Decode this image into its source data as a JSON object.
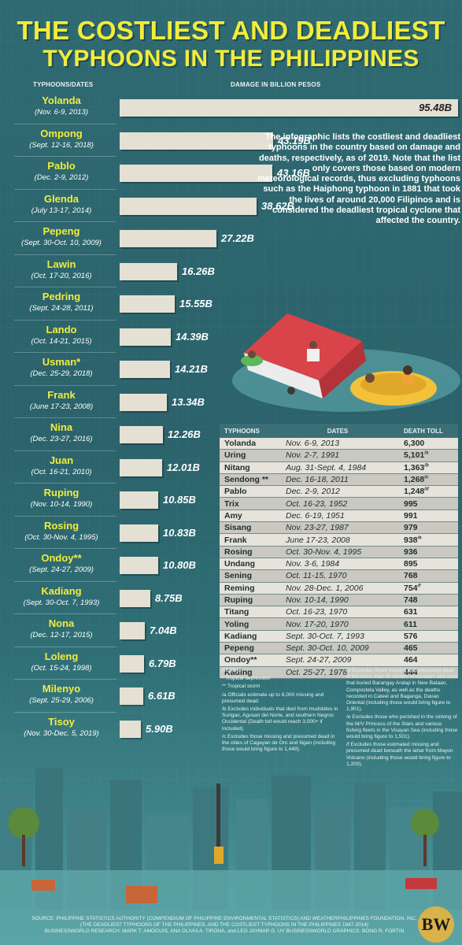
{
  "title": {
    "line1": "THE COSTLIEST AND DEADLIEST",
    "line2": "TYPHOONS IN THE PHILIPPINES"
  },
  "headers": {
    "typhoons_dates": "TYPHOONS/DATES",
    "damage": "DAMAGE IN BILLION PESOS"
  },
  "description": "The infographic lists the costliest and deadliest typhoons in the country based on damage and deaths, respectively, as of 2019. Note that the list only covers those based on modern meteorological records, thus excluding typhoons such as the Haiphong typhoon in 1881 that took the lives of around 20,000 Filipinos and is considered the deadliest tropical cyclone that affected the country.",
  "chart_data": {
    "type": "bar",
    "orientation": "horizontal",
    "unit": "B",
    "xmax": 95.48,
    "items": [
      {
        "name": "Yolanda",
        "dates": "(Nov. 6-9, 2013)",
        "value": 95.48,
        "label": "95.48B"
      },
      {
        "name": "Ompong",
        "dates": "(Sept. 12-16, 2018)",
        "value": 43.19,
        "label": "43.19B"
      },
      {
        "name": "Pablo",
        "dates": "(Dec. 2-9, 2012)",
        "value": 43.16,
        "label": "43.16B"
      },
      {
        "name": "Glenda",
        "dates": "(July 13-17, 2014)",
        "value": 38.62,
        "label": "38.62B"
      },
      {
        "name": "Pepeng",
        "dates": "(Sept. 30-Oct. 10, 2009)",
        "value": 27.22,
        "label": "27.22B"
      },
      {
        "name": "Lawin",
        "dates": "(Oct. 17-20, 2016)",
        "value": 16.26,
        "label": "16.26B"
      },
      {
        "name": "Pedring",
        "dates": "(Sept. 24-28, 2011)",
        "value": 15.55,
        "label": "15.55B"
      },
      {
        "name": "Lando",
        "dates": "(Oct. 14-21, 2015)",
        "value": 14.39,
        "label": "14.39B"
      },
      {
        "name": "Usman*",
        "dates": "(Dec. 25-29, 2018)",
        "value": 14.21,
        "label": "14.21B"
      },
      {
        "name": "Frank",
        "dates": "(June 17-23, 2008)",
        "value": 13.34,
        "label": "13.34B"
      },
      {
        "name": "Nina",
        "dates": "(Dec. 23-27, 2016)",
        "value": 12.26,
        "label": "12.26B"
      },
      {
        "name": "Juan",
        "dates": "(Oct. 16-21, 2010)",
        "value": 12.01,
        "label": "12.01B"
      },
      {
        "name": "Ruping",
        "dates": "(Nov. 10-14, 1990)",
        "value": 10.85,
        "label": "10.85B"
      },
      {
        "name": "Rosing",
        "dates": "(Oct. 30-Nov. 4, 1995)",
        "value": 10.83,
        "label": "10.83B"
      },
      {
        "name": "Ondoy**",
        "dates": "(Sept. 24-27, 2009)",
        "value": 10.8,
        "label": "10.80B"
      },
      {
        "name": "Kadiang",
        "dates": "(Sept. 30-Oct. 7, 1993)",
        "value": 8.75,
        "label": "8.75B"
      },
      {
        "name": "Nona",
        "dates": "(Dec. 12-17, 2015)",
        "value": 7.04,
        "label": "7.04B"
      },
      {
        "name": "Loleng",
        "dates": "(Oct. 15-24, 1998)",
        "value": 6.79,
        "label": "6.79B"
      },
      {
        "name": "Milenyo",
        "dates": "(Sept. 25-29, 2006)",
        "value": 6.61,
        "label": "6.61B"
      },
      {
        "name": "Tisoy",
        "dates": "(Nov. 30-Dec. 5, 2019)",
        "value": 5.9,
        "label": "5.90B"
      }
    ]
  },
  "death_table": {
    "headers": [
      "TYPHOONS",
      "DATES",
      "DEATH TOLL"
    ],
    "rows": [
      {
        "name": "Yolanda",
        "dates": "Nov. 6-9, 2013",
        "toll": "6,300",
        "note": ""
      },
      {
        "name": "Uring",
        "dates": "Nov. 2-7, 1991",
        "toll": "5,101",
        "note": "/a"
      },
      {
        "name": "Nitang",
        "dates": "Aug. 31-Sept. 4, 1984",
        "toll": "1,363",
        "note": "/b"
      },
      {
        "name": "Sendong **",
        "dates": "Dec. 16-18, 2011",
        "toll": "1,268",
        "note": "/c"
      },
      {
        "name": "Pablo",
        "dates": "Dec. 2-9, 2012",
        "toll": "1,248",
        "note": "/d"
      },
      {
        "name": "Trix",
        "dates": "Oct. 16-23, 1952",
        "toll": "995",
        "note": ""
      },
      {
        "name": "Amy",
        "dates": "Dec. 6-19, 1951",
        "toll": "991",
        "note": ""
      },
      {
        "name": "Sisang",
        "dates": "Nov. 23-27, 1987",
        "toll": "979",
        "note": ""
      },
      {
        "name": "Frank",
        "dates": "June 17-23, 2008",
        "toll": "938",
        "note": "/e"
      },
      {
        "name": "Rosing",
        "dates": "Oct. 30-Nov. 4, 1995",
        "toll": "936",
        "note": ""
      },
      {
        "name": "Undang",
        "dates": "Nov. 3-6, 1984",
        "toll": "895",
        "note": ""
      },
      {
        "name": "Sening",
        "dates": "Oct. 11-15, 1970",
        "toll": "768",
        "note": ""
      },
      {
        "name": "Reming",
        "dates": "Nov. 28-Dec. 1, 2006",
        "toll": "754",
        "note": "/f"
      },
      {
        "name": "Ruping",
        "dates": "Nov. 10-14, 1990",
        "toll": "748",
        "note": ""
      },
      {
        "name": "Titang",
        "dates": "Oct. 16-23, 1970",
        "toll": "631",
        "note": ""
      },
      {
        "name": "Yoling",
        "dates": "Nov. 17-20, 1970",
        "toll": "611",
        "note": ""
      },
      {
        "name": "Kadiang",
        "dates": "Sept. 30-Oct. 7, 1993",
        "toll": "576",
        "note": ""
      },
      {
        "name": "Pepeng",
        "dates": "Sept. 30-Oct. 10, 2009",
        "toll": "465",
        "note": ""
      },
      {
        "name": "Ondoy**",
        "dates": "Sept. 24-27, 2009",
        "toll": "464",
        "note": ""
      },
      {
        "name": "Kading",
        "dates": "Oct. 25-27, 1978",
        "toll": "444",
        "note": ""
      }
    ]
  },
  "notes": {
    "heading": "NOTES:",
    "left": [
      "* Tropical depression",
      "** Tropical storm",
      "/a Officials estimate up to 8,000 missing and presumed dead.",
      "/b Excludes individuals that died from mudslides in Surigao, Agusan del Norte, and southern Negros Occidental (Death toll would reach 3,000+ if included).",
      "/c Excludes those missing and presumed dead in the cities of Cagayan de Oro and Iligan (including those would bring figure to 1,449)."
    ],
    "right": [
      "/d Excludes those missing and presumed dead in the more than 30 meters of boulders and mud that buried Barangay Andap in New Bataan, Compostela Valley, as well as the deaths recorded in Cateel and Baganga, Davao Oriental (including those would bring figure to 1,901).",
      "/e Excludes those who perished in the sinking of the M/V Princess of the Stars and various fishing fleets in the Visayan Sea (including those would bring figure to 1,501).",
      "/f Excludes those estimated missing and presumed dead beneath the lahar from Mayon Volcano (including those would bring figure to 1,200)."
    ]
  },
  "footer": {
    "line1": "SOURCE: PHILIPPINE STATISTICS AUTHORITY (COMPENDIUM OF PHILIPPINE ENVIRONMENTAL STATISTICS) AND WEATHERPHILIPPINES FOUNDATION, INC.",
    "line2": "(THE DEADLIEST TYPHOONS OF THE PHILIPPINES, AND THE COSTLIEST TYPHOONS IN THE PHILIPPINES 1947-2014)",
    "line3": "BUSINESSWORLD RESEARCH: MARK T. AMOGUIS, ANA OLIVIA A. TIRONA, and LEO JAYMAR G. UY   BUSINESSWORLD GRAPHICS: BONG R. FORTIN"
  },
  "logo": "BW",
  "colors": {
    "title": "#f1ec3d",
    "bar": "#e4e0d4",
    "roof": "#d9434a",
    "boat": "#f3c13a"
  }
}
